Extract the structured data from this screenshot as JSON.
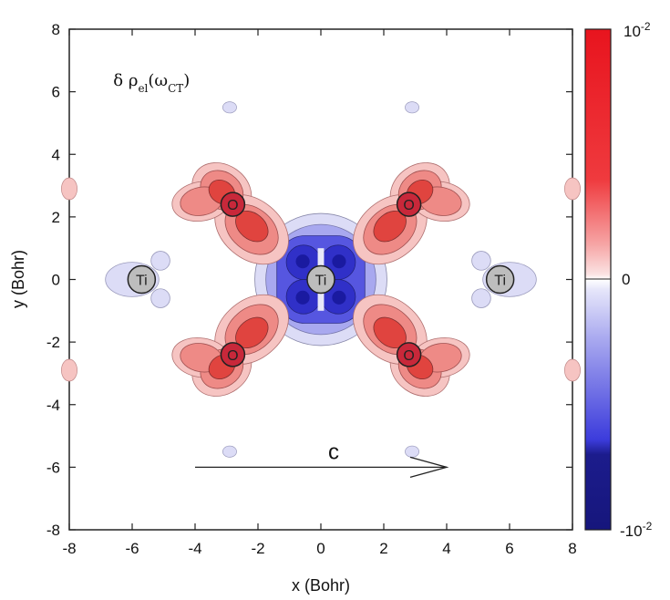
{
  "chart_data": {
    "type": "heatmap",
    "xlabel": "x (Bohr)",
    "ylabel": "y (Bohr)",
    "xlim": [
      -8,
      8
    ],
    "ylim": [
      -8,
      8
    ],
    "xticks": [
      -8,
      -6,
      -4,
      -2,
      0,
      2,
      4,
      6,
      8
    ],
    "yticks": [
      -8,
      -6,
      -4,
      -2,
      0,
      2,
      4,
      6,
      8
    ],
    "xtick_labels": [
      "-8",
      "-6",
      "-4",
      "-2",
      "0",
      "2",
      "4",
      "6",
      "8"
    ],
    "ytick_labels": [
      "-8",
      "-6",
      "-4",
      "-2",
      "0",
      "2",
      "4",
      "6",
      "8"
    ],
    "annotation": {
      "prefix": "δ ρ",
      "sub1": "el",
      "mid": "(ω",
      "sub2": "CT",
      "suffix": ")",
      "x": -6.6,
      "y": 6.2
    },
    "arrow": {
      "label": "c",
      "x_start": -4,
      "x_end": 4,
      "y": -6
    },
    "atoms": [
      {
        "label": "Ti",
        "x": 0,
        "y": 0
      },
      {
        "label": "Ti",
        "x": -5.7,
        "y": 0
      },
      {
        "label": "Ti",
        "x": 5.7,
        "y": 0
      },
      {
        "label": "O",
        "x": -2.8,
        "y": 2.4
      },
      {
        "label": "O",
        "x": 2.8,
        "y": 2.4
      },
      {
        "label": "O",
        "x": -2.8,
        "y": -2.4
      },
      {
        "label": "O",
        "x": 2.8,
        "y": -2.4
      }
    ],
    "colorbar": {
      "max_label_base": "10",
      "max_label_exp": "-2",
      "mid_label": "0",
      "min_label_base": "-10",
      "min_label_exp": "-2",
      "positive_color": "#e8141e",
      "negative_color": "#1c1c8c",
      "neutral_color": "#ffffff"
    }
  },
  "colors": {
    "red_light": "#f6c4c2",
    "red_mid": "#ee8a86",
    "red_dark": "#e0443f",
    "red_atom": "#c8283a",
    "blue_light": "#dcdcf6",
    "blue_mid": "#a8a8ef",
    "blue_strong": "#5656e0",
    "blue_dark": "#1a1aa0",
    "ti_gray": "#bdbdbd"
  }
}
